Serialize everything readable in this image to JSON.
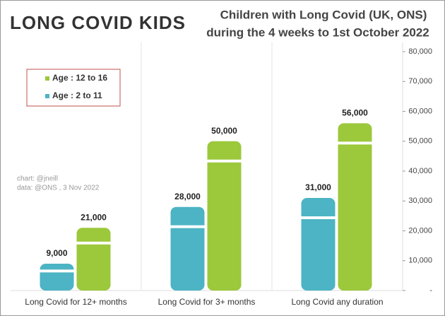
{
  "logo": "LONG COVID KIDS",
  "chart_data": {
    "type": "bar",
    "title": "Children with Long Covid (UK, ONS)",
    "subtitle": "during the 4 weeks to 1st October 2022",
    "annotations": [
      "chart: @jneill",
      "data: @ONS , 3 Nov 2022"
    ],
    "categories": [
      "Long Covid for 12+ months",
      "Long Covid for 3+ months",
      "Long Covid any duration"
    ],
    "series": [
      {
        "name": "Age : 12 to 16",
        "color": "#9cc83b",
        "values": [
          21000,
          50000,
          56000
        ],
        "value_labels": [
          "21,000",
          "50,000",
          "56,000"
        ]
      },
      {
        "name": "Age : 2 to 11",
        "color": "#4cb4c4",
        "values": [
          9000,
          28000,
          31000
        ],
        "value_labels": [
          "9,000",
          "28,000",
          "31,000"
        ]
      }
    ],
    "ylim": [
      0,
      80000
    ],
    "yticks": [
      {
        "value": 0,
        "label": "-"
      },
      {
        "value": 10000,
        "label": "10,000"
      },
      {
        "value": 20000,
        "label": "20,000"
      },
      {
        "value": 30000,
        "label": "30,000"
      },
      {
        "value": 40000,
        "label": "40,000"
      },
      {
        "value": 50000,
        "label": "50,000"
      },
      {
        "value": 60000,
        "label": "60,000"
      },
      {
        "value": 70000,
        "label": "70,000"
      },
      {
        "value": 80000,
        "label": "80,000"
      }
    ],
    "grid": false,
    "legend_position": "upper left"
  }
}
